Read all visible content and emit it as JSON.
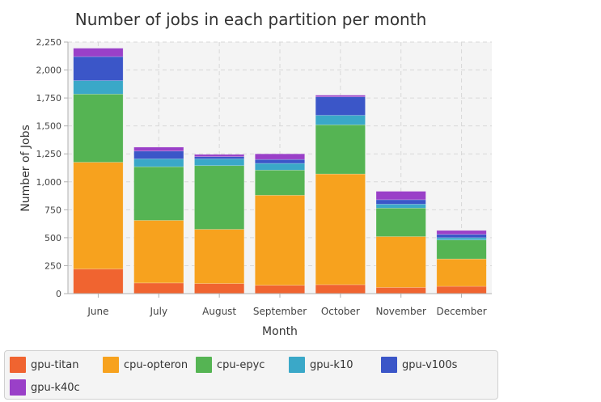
{
  "colors": {
    "gpu-titan": "#f06430",
    "cpu-opteron": "#f7a21e",
    "cpu-epyc": "#55b453",
    "gpu-k10": "#3aa8c8",
    "gpu-v100s": "#3b56c8",
    "gpu-k40c": "#9a40c8"
  },
  "chart_data": {
    "type": "bar",
    "stacked": true,
    "title": "Number of jobs in each partition per month",
    "xlabel": "Month",
    "ylabel": "Number of Jobs",
    "ylim": [
      0,
      2250
    ],
    "yticks": [
      "0",
      "250",
      "500",
      "750",
      "1,000",
      "1,250",
      "1,500",
      "1,750",
      "2,000",
      "2,250"
    ],
    "grid": true,
    "legend_position": "bottom",
    "categories": [
      "June",
      "July",
      "August",
      "September",
      "October",
      "November",
      "December"
    ],
    "series": [
      {
        "name": "gpu-titan",
        "values": [
          220,
          95,
          90,
          75,
          80,
          55,
          65
        ]
      },
      {
        "name": "cpu-opteron",
        "values": [
          955,
          560,
          485,
          805,
          990,
          455,
          245
        ]
      },
      {
        "name": "cpu-epyc",
        "values": [
          610,
          480,
          570,
          225,
          440,
          255,
          170
        ]
      },
      {
        "name": "gpu-k10",
        "values": [
          120,
          70,
          60,
          60,
          85,
          35,
          20
        ]
      },
      {
        "name": "gpu-v100s",
        "values": [
          215,
          70,
          20,
          35,
          165,
          40,
          30
        ]
      },
      {
        "name": "gpu-k40c",
        "values": [
          75,
          35,
          20,
          50,
          15,
          75,
          35
        ]
      }
    ]
  }
}
